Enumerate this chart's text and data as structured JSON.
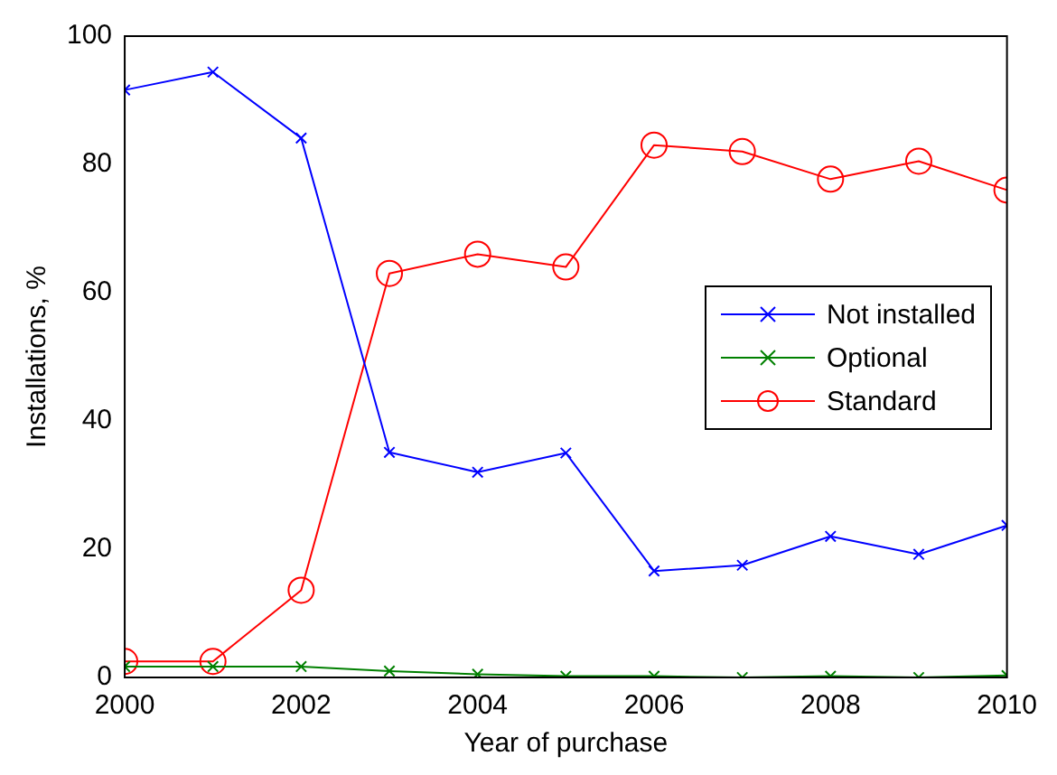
{
  "chart_data": {
    "type": "line",
    "xlabel": "Year of purchase",
    "ylabel": "Installations, %",
    "x": [
      2000,
      2001,
      2002,
      2003,
      2004,
      2005,
      2006,
      2007,
      2008,
      2009,
      2010
    ],
    "series": [
      {
        "name": "Not installed",
        "color": "#0000ff",
        "marker": "cross",
        "values": [
          91.6,
          94.4,
          84.1,
          35.1,
          32,
          35,
          16.6,
          17.5,
          22,
          19.2,
          23.7
        ]
      },
      {
        "name": "Optional",
        "color": "#008000",
        "marker": "cross",
        "values": [
          1.7,
          1.7,
          1.7,
          1,
          0.5,
          0.2,
          0.2,
          0,
          0.2,
          0,
          0.3
        ]
      },
      {
        "name": "Standard",
        "color": "#ff0000",
        "marker": "circle",
        "values": [
          2.5,
          2.5,
          13.6,
          63,
          66,
          64,
          83,
          82,
          77.7,
          80.5,
          76
        ]
      }
    ],
    "xlim": [
      2000,
      2010
    ],
    "xticks": [
      2000,
      2002,
      2004,
      2006,
      2008,
      2010
    ],
    "ylim": [
      0,
      100
    ],
    "yticks": [
      0,
      20,
      40,
      60,
      80,
      100
    ],
    "grid": false,
    "legend": "right",
    "line_style": "solid"
  }
}
